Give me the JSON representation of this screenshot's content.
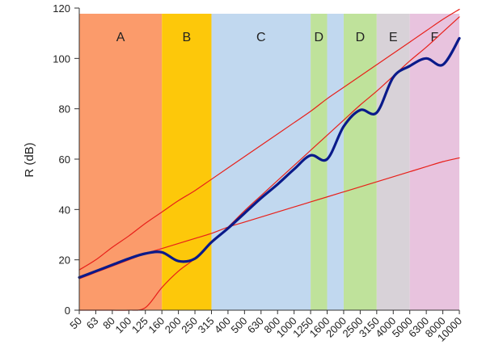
{
  "chart_data": {
    "type": "line",
    "title": "",
    "xlabel": "",
    "ylabel": "R (dB)",
    "ylim": [
      0,
      120
    ],
    "yticks": [
      0,
      20,
      40,
      60,
      80,
      100,
      120
    ],
    "grid": false,
    "legend": "none",
    "categories": [
      "50",
      "63",
      "80",
      "100",
      "125",
      "160",
      "200",
      "250",
      "315",
      "400",
      "500",
      "630",
      "800",
      "1000",
      "1250",
      "1600",
      "2000",
      "2500",
      "3150",
      "4000",
      "5000",
      "6300",
      "8000",
      "10000"
    ],
    "regions": [
      {
        "label": "A",
        "from": "50",
        "to": "160",
        "color": "#fb9b6b"
      },
      {
        "label": "B",
        "from": "160",
        "to": "315",
        "color": "#fdc80a"
      },
      {
        "label": "C",
        "from": "315",
        "to": "1250",
        "color": "#c1d8ef"
      },
      {
        "label": "D",
        "from": "1250",
        "to": "1600",
        "color": "#bfe29b"
      },
      {
        "label": "",
        "from": "1600",
        "to": "2000",
        "color": "#c1d8ef"
      },
      {
        "label": "D",
        "from": "2000",
        "to": "3150",
        "color": "#bfe29b"
      },
      {
        "label": "E",
        "from": "3150",
        "to": "5000",
        "color": "#d8d2d8"
      },
      {
        "label": "F",
        "from": "5000",
        "to": "10000",
        "color": "#e8c3de"
      }
    ],
    "series": [
      {
        "color": "#0a1a8a",
        "width": 3.2,
        "values": [
          13,
          15.5,
          18,
          20.5,
          22.5,
          23,
          19.5,
          20.5,
          27,
          32.5,
          38.5,
          44.5,
          50,
          56,
          61.5,
          60,
          73,
          79.5,
          78.5,
          92.5,
          97,
          100,
          97.5,
          108
        ]
      },
      {
        "color": "#e8201a",
        "width": 1.2,
        "values": [
          16,
          20,
          25,
          29.5,
          34.5,
          39,
          43.5,
          47.5,
          52,
          56.5,
          61,
          65.5,
          70,
          74.5,
          79,
          84,
          88.5,
          93,
          97.5,
          102,
          106.5,
          111,
          115.5,
          119.5
        ]
      },
      {
        "color": "#e8201a",
        "width": 1.2,
        "values": [
          12.5,
          15,
          17.5,
          20,
          22.5,
          24.5,
          26.5,
          28.5,
          30.5,
          33,
          35,
          37,
          39,
          41,
          43,
          45,
          47,
          49,
          51,
          53,
          55,
          57,
          59,
          60.5
        ]
      },
      {
        "color": "#e8201a",
        "width": 1.2,
        "values": [
          0,
          0,
          0,
          0,
          1,
          9,
          15.5,
          20.5,
          27,
          33,
          39.5,
          45.5,
          51.5,
          57.5,
          63.5,
          69.5,
          75.5,
          81.5,
          87,
          93,
          99,
          104.5,
          110.5,
          116.5
        ]
      }
    ]
  }
}
